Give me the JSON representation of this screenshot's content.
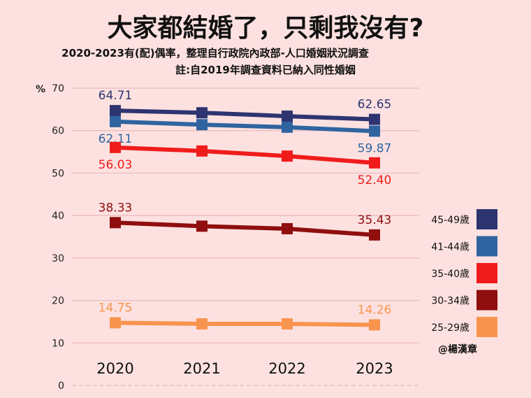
{
  "title": "大家都結婚了，只剩我沒有?",
  "subtitle": "2020-2023有(配)偶率，整理自行政院內政部-人口婚姻狀況調查",
  "note": "註:自2019年調查資料已納入同性婚姻",
  "credit": "@楊漢章",
  "chart_data": {
    "type": "line",
    "ylabel": "%",
    "ylim": [
      0,
      70
    ],
    "yticks": [
      0,
      10,
      20,
      30,
      40,
      50,
      60,
      70
    ],
    "grid": true,
    "legend_placement": "right",
    "categories": [
      "2020",
      "2021",
      "2022",
      "2023"
    ],
    "series": [
      {
        "name": "45-49歲",
        "color": "#2d3470",
        "values": [
          64.71,
          64.2,
          63.4,
          62.65
        ],
        "labels": [
          "64.71",
          null,
          null,
          "62.65"
        ],
        "label_pos": "above"
      },
      {
        "name": "41-44歲",
        "color": "#2f64a0",
        "values": [
          62.11,
          61.4,
          60.8,
          59.87
        ],
        "labels": [
          "62.11",
          null,
          null,
          "59.87"
        ],
        "label_pos": "below"
      },
      {
        "name": "35-40歲",
        "color": "#f01c1c",
        "values": [
          56.03,
          55.2,
          54.0,
          52.4
        ],
        "labels": [
          "56.03",
          null,
          null,
          "52.40"
        ],
        "label_pos": "below"
      },
      {
        "name": "30-34歲",
        "color": "#8f0e0e",
        "values": [
          38.33,
          37.5,
          36.9,
          35.43
        ],
        "labels": [
          "38.33",
          null,
          null,
          "35.43"
        ],
        "label_pos": "above"
      },
      {
        "name": "25-29歲",
        "color": "#f9944e",
        "values": [
          14.75,
          14.5,
          14.5,
          14.26
        ],
        "labels": [
          "14.75",
          null,
          null,
          "14.26"
        ],
        "label_pos": "above"
      }
    ]
  }
}
